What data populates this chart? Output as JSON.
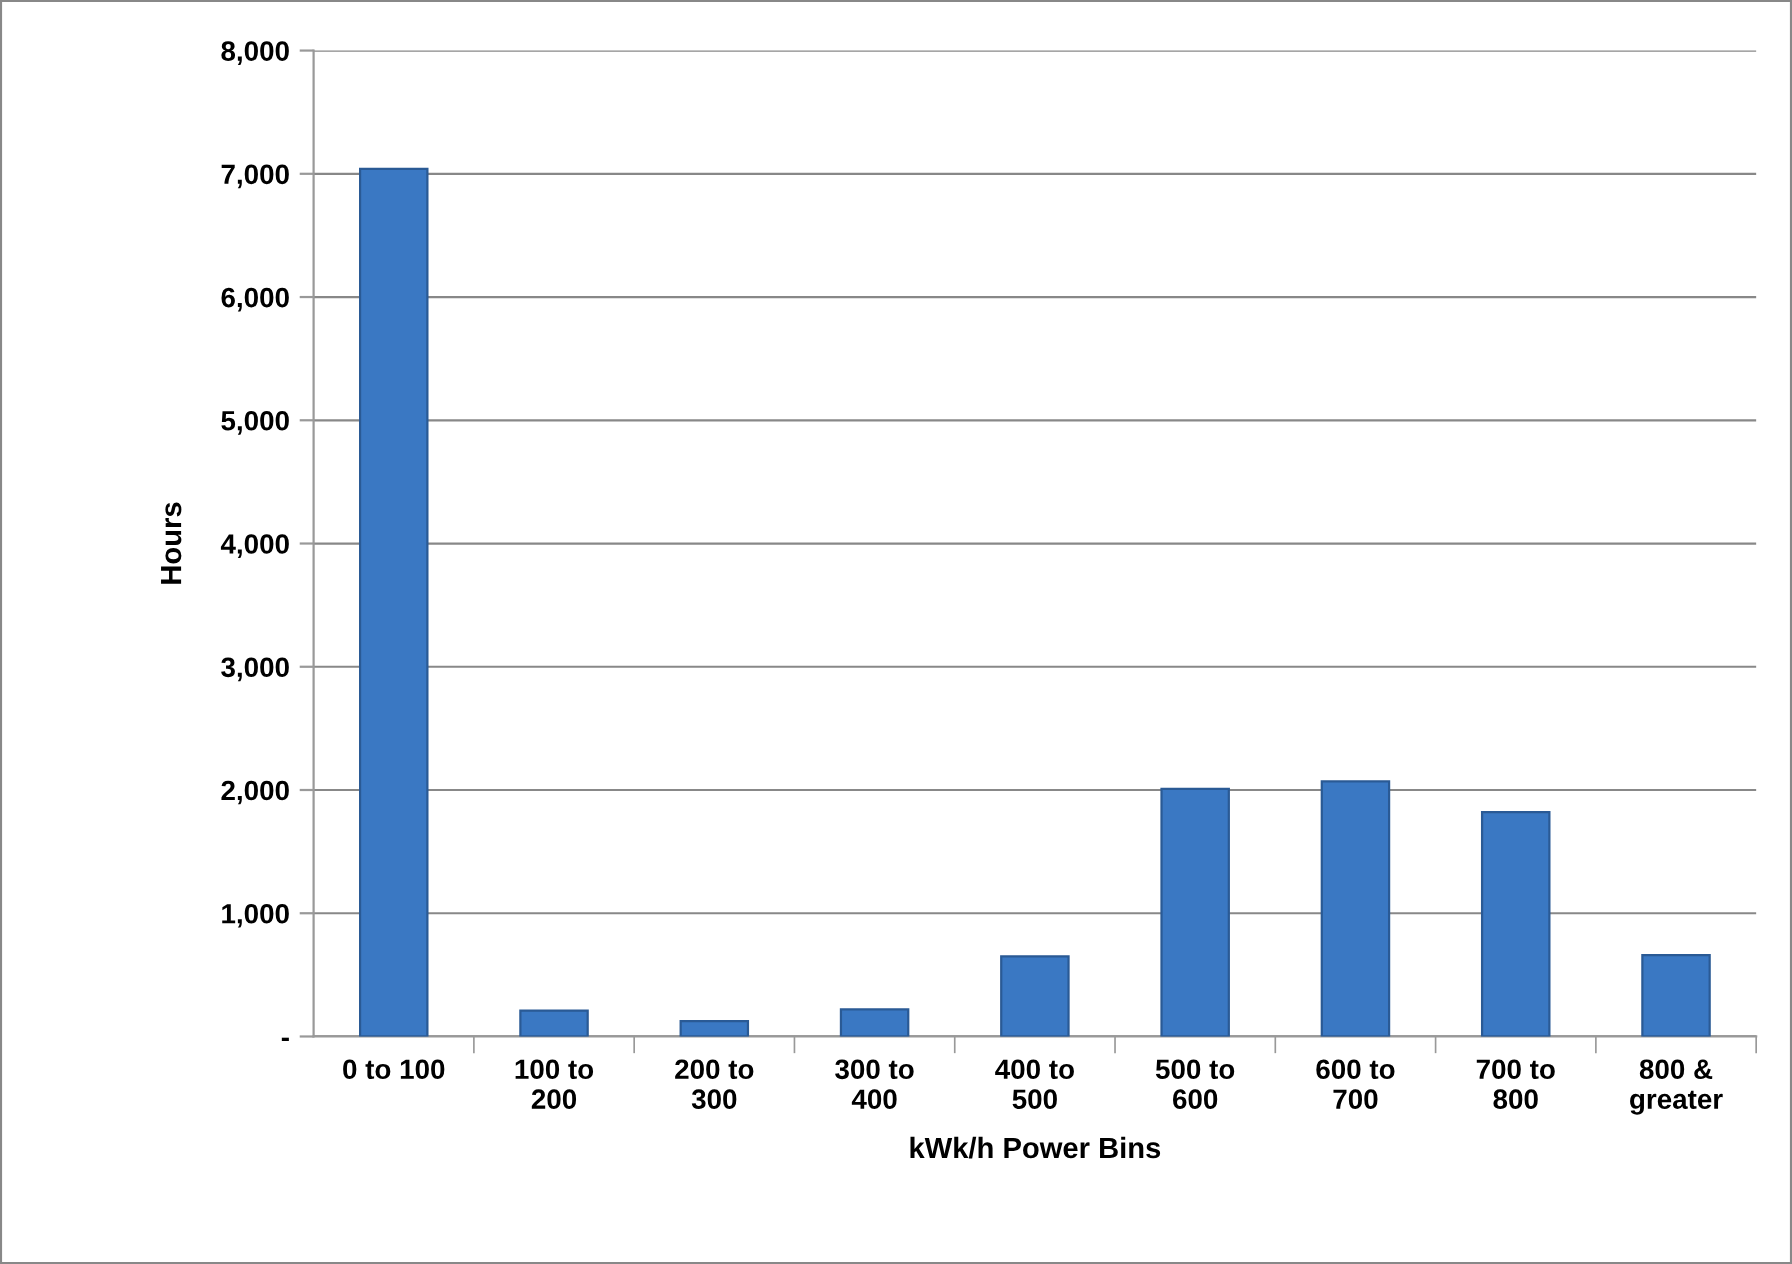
{
  "chart_data": {
    "type": "bar",
    "xlabel": "kWk/h Power Bins",
    "ylabel": "Hours",
    "categories": [
      "0 to 100",
      "100 to\n200",
      "200 to\n300",
      "300 to\n400",
      "400 to\n500",
      "500 to\n600",
      "600 to\n700",
      "700 to\n800",
      "800 &\ngreater"
    ],
    "values": [
      7040,
      210,
      125,
      220,
      650,
      2010,
      2070,
      1820,
      660
    ],
    "color": "#3a78c3",
    "ylim": [
      0,
      8000
    ],
    "yticks": [
      {
        "value": 0,
        "label": "-"
      },
      {
        "value": 1000,
        "label": "1,000"
      },
      {
        "value": 2000,
        "label": "2,000"
      },
      {
        "value": 3000,
        "label": "3,000"
      },
      {
        "value": 4000,
        "label": "4,000"
      },
      {
        "value": 5000,
        "label": "5,000"
      },
      {
        "value": 6000,
        "label": "6,000"
      },
      {
        "value": 7000,
        "label": "7,000"
      },
      {
        "value": 8000,
        "label": "8,000"
      }
    ],
    "grid": "y",
    "legend": false
  }
}
